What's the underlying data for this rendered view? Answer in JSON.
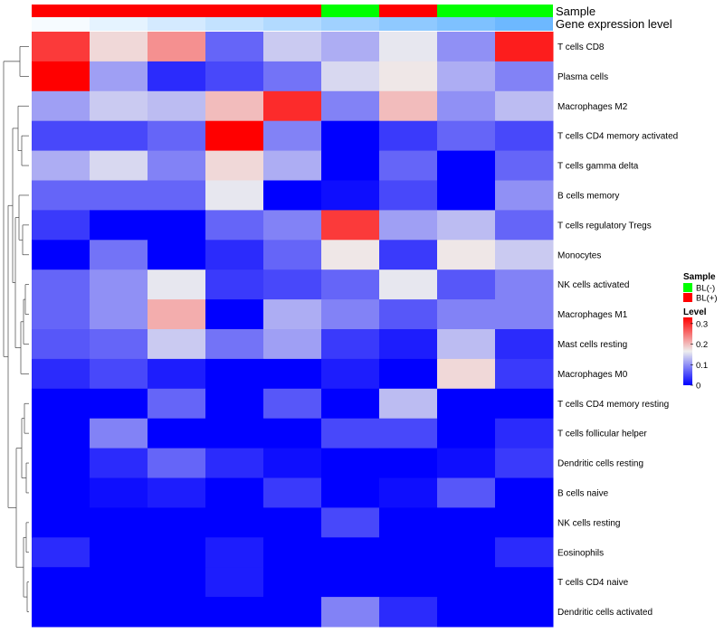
{
  "chart_data": {
    "type": "heatmap",
    "annotations": {
      "sample_title": "Sample",
      "expression_title": "Gene expression level",
      "sample_groups": [
        "BL(+)",
        "BL(+)",
        "BL(+)",
        "BL(+)",
        "BL(+)",
        "BL(-)",
        "BL(+)",
        "BL(-)",
        "BL(-)"
      ],
      "expression_levels": [
        0.02,
        0.06,
        0.1,
        0.14,
        0.18,
        0.22,
        0.26,
        0.3,
        0.34
      ]
    },
    "columns": 9,
    "rows": [
      {
        "label": "T cells CD8",
        "values": [
          0.29,
          0.18,
          0.23,
          0.07,
          0.14,
          0.12,
          0.16,
          0.1,
          0.31
        ]
      },
      {
        "label": "Plasma cells",
        "values": [
          0.33,
          0.11,
          0.03,
          0.05,
          0.08,
          0.15,
          0.17,
          0.12,
          0.09
        ]
      },
      {
        "label": "Macrophages M2",
        "values": [
          0.11,
          0.14,
          0.13,
          0.2,
          0.3,
          0.09,
          0.2,
          0.1,
          0.13
        ]
      },
      {
        "label": "T cells CD4 memory activated",
        "values": [
          0.05,
          0.05,
          0.07,
          0.33,
          0.09,
          0.0,
          0.04,
          0.07,
          0.05
        ]
      },
      {
        "label": "T cells gamma delta",
        "values": [
          0.12,
          0.15,
          0.09,
          0.18,
          0.12,
          0.0,
          0.07,
          0.0,
          0.07
        ]
      },
      {
        "label": "B cells memory",
        "values": [
          0.07,
          0.07,
          0.07,
          0.16,
          0.0,
          0.01,
          0.05,
          0.0,
          0.1
        ]
      },
      {
        "label": "T cells regulatory  Tregs",
        "values": [
          0.04,
          0.0,
          0.0,
          0.07,
          0.09,
          0.29,
          0.11,
          0.13,
          0.07
        ]
      },
      {
        "label": "Monocytes",
        "values": [
          0.0,
          0.08,
          0.0,
          0.03,
          0.07,
          0.17,
          0.04,
          0.17,
          0.14
        ]
      },
      {
        "label": "NK cells activated",
        "values": [
          0.07,
          0.1,
          0.16,
          0.04,
          0.05,
          0.07,
          0.16,
          0.06,
          0.09
        ]
      },
      {
        "label": "Macrophages M1",
        "values": [
          0.07,
          0.1,
          0.21,
          0.0,
          0.12,
          0.09,
          0.06,
          0.09,
          0.09
        ]
      },
      {
        "label": "Mast cells resting",
        "values": [
          0.06,
          0.07,
          0.14,
          0.08,
          0.11,
          0.04,
          0.02,
          0.13,
          0.03
        ]
      },
      {
        "label": "Macrophages M0",
        "values": [
          0.03,
          0.05,
          0.02,
          0.0,
          0.0,
          0.02,
          0.0,
          0.18,
          0.04
        ]
      },
      {
        "label": "T cells CD4 memory resting",
        "values": [
          0.0,
          0.0,
          0.07,
          0.0,
          0.06,
          0.0,
          0.13,
          0.0,
          0.0
        ]
      },
      {
        "label": "T cells follicular helper",
        "values": [
          0.0,
          0.09,
          0.0,
          0.0,
          0.0,
          0.05,
          0.05,
          0.0,
          0.03
        ]
      },
      {
        "label": "Dendritic cells resting",
        "values": [
          0.0,
          0.03,
          0.07,
          0.03,
          0.01,
          0.0,
          0.0,
          0.01,
          0.04
        ]
      },
      {
        "label": "B cells naive",
        "values": [
          0.0,
          0.01,
          0.02,
          0.0,
          0.04,
          0.0,
          0.01,
          0.06,
          0.0
        ]
      },
      {
        "label": "NK cells resting",
        "values": [
          0.0,
          0.0,
          0.0,
          0.0,
          0.0,
          0.05,
          0.0,
          0.0,
          0.0
        ]
      },
      {
        "label": "Eosinophils",
        "values": [
          0.03,
          0.0,
          0.0,
          0.02,
          0.0,
          0.0,
          0.0,
          0.0,
          0.03
        ]
      },
      {
        "label": "T cells CD4 naive",
        "values": [
          0.0,
          0.0,
          0.0,
          0.02,
          0.0,
          0.0,
          0.0,
          0.0,
          0.0
        ]
      },
      {
        "label": "Dendritic cells activated",
        "values": [
          0.0,
          0.0,
          0.0,
          0.0,
          0.0,
          0.09,
          0.03,
          0.0,
          0.0
        ]
      }
    ],
    "color_scale": {
      "min": 0,
      "mid": 0.165,
      "max": 0.33,
      "low": "#0000ff",
      "mid_color": "#eeeeee",
      "high": "#ff0000"
    },
    "legend": {
      "sample_title": "Sample",
      "sample_entries": [
        {
          "label": "BL(-)",
          "color": "#00ff00"
        },
        {
          "label": "BL(+)",
          "color": "#ff0000"
        }
      ],
      "level_title": "Level",
      "level_ticks": [
        "0.3",
        "0.2",
        "0.1",
        "0"
      ],
      "level_tick_values": [
        0.3,
        0.2,
        0.1,
        0
      ]
    },
    "row_dendrogram": true
  }
}
